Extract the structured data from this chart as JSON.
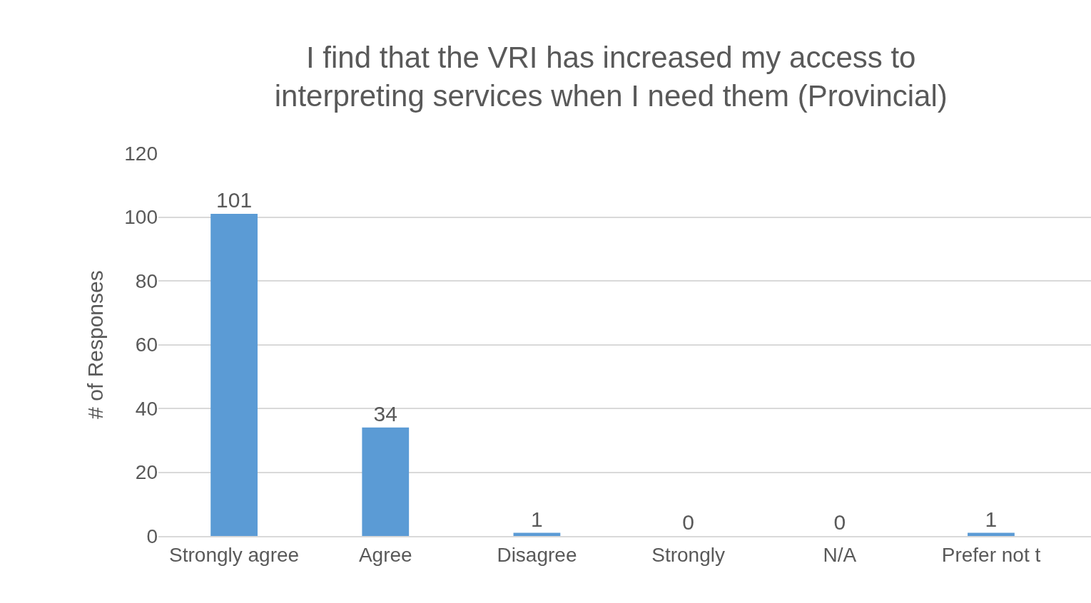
{
  "chart_data": {
    "type": "bar",
    "title": "I find that the VRI has increased my access to\ninterpreting services when I need them (Provincial)",
    "ylabel": "# of Responses",
    "categories": [
      "Strongly agree",
      "Agree",
      "Disagree",
      "Strongly",
      "N/A",
      "Prefer not t"
    ],
    "values": [
      101,
      34,
      1,
      0,
      0,
      1
    ],
    "color": "#5b9bd5",
    "ylim": [
      0,
      120
    ],
    "yticks": [
      0,
      20,
      40,
      60,
      80,
      100,
      120
    ],
    "grid": "y",
    "data_labels": true,
    "legend": false
  }
}
